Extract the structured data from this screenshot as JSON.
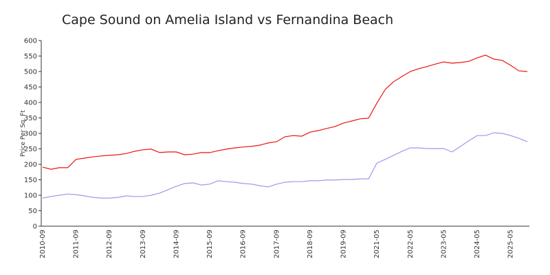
{
  "chart_data": {
    "type": "line",
    "title": "Cape Sound on Amelia Island vs Fernandina Beach",
    "y_label": "Price Per Sq. Ft",
    "categories": [
      "2010-09",
      null,
      null,
      null,
      "2011-09",
      null,
      null,
      null,
      "2012-09",
      null,
      null,
      null,
      "2013-09",
      null,
      null,
      null,
      "2014-09",
      null,
      null,
      null,
      "2015-09",
      null,
      null,
      null,
      "2016-09",
      null,
      null,
      null,
      "2017-09",
      null,
      null,
      null,
      "2018-09",
      null,
      null,
      null,
      "2019-09",
      null,
      null,
      null,
      "2021-05",
      null,
      null,
      null,
      "2022-05",
      null,
      null,
      null,
      "2023-05",
      null,
      null,
      null,
      "2024-05",
      null,
      null,
      null,
      "2025-05",
      null,
      null
    ],
    "series": [
      {
        "color": "#ee1111",
        "values": [
          191,
          184,
          189,
          189,
          216,
          220,
          224,
          227,
          229,
          231,
          235,
          242,
          247,
          249,
          238,
          240,
          240,
          231,
          233,
          238,
          238,
          244,
          249,
          253,
          256,
          258,
          262,
          269,
          273,
          289,
          293,
          291,
          304,
          309,
          316,
          322,
          333,
          340,
          347,
          349,
          398,
          442,
          467,
          484,
          500,
          509,
          516,
          524,
          531,
          527,
          529,
          533,
          544,
          553,
          540,
          536,
          520,
          502,
          500
        ]
      },
      {
        "color": "#9999ee",
        "values": [
          91,
          96,
          100,
          104,
          102,
          98,
          93,
          91,
          91,
          93,
          98,
          96,
          96,
          100,
          107,
          118,
          129,
          138,
          140,
          133,
          136,
          147,
          144,
          142,
          138,
          136,
          131,
          127,
          136,
          142,
          144,
          144,
          147,
          147,
          149,
          149,
          151,
          151,
          153,
          153,
          204,
          216,
          229,
          242,
          253,
          253,
          251,
          251,
          251,
          240,
          258,
          276,
          293,
          293,
          302,
          300,
          293,
          284,
          273
        ]
      }
    ],
    "ylim": [
      0,
      600
    ],
    "yticks": [
      0,
      50,
      100,
      150,
      200,
      250,
      300,
      350,
      400,
      450,
      500,
      550,
      600
    ]
  }
}
